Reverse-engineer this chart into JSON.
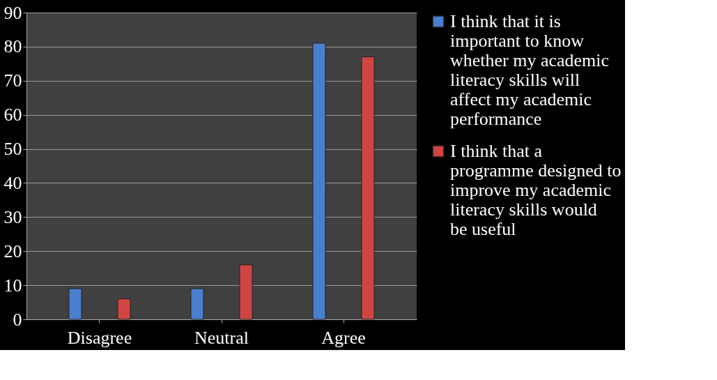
{
  "chart_data": {
    "type": "bar",
    "categories": [
      "Disagree",
      "Neutral",
      "Agree"
    ],
    "series": [
      {
        "name": "I think that it is important to know whether my academic literacy skills will affect my academic performance",
        "color": "#4a7fcf",
        "values": [
          9,
          9,
          81
        ]
      },
      {
        "name": "I think that a programme designed to improve my academic literacy skills would be useful",
        "color": "#d04444",
        "values": [
          6,
          16,
          77
        ]
      }
    ],
    "ylim": [
      0,
      90
    ],
    "yticks": [
      0,
      10,
      20,
      30,
      40,
      50,
      60,
      70,
      80,
      90
    ],
    "grid": "y",
    "legend": "right"
  }
}
